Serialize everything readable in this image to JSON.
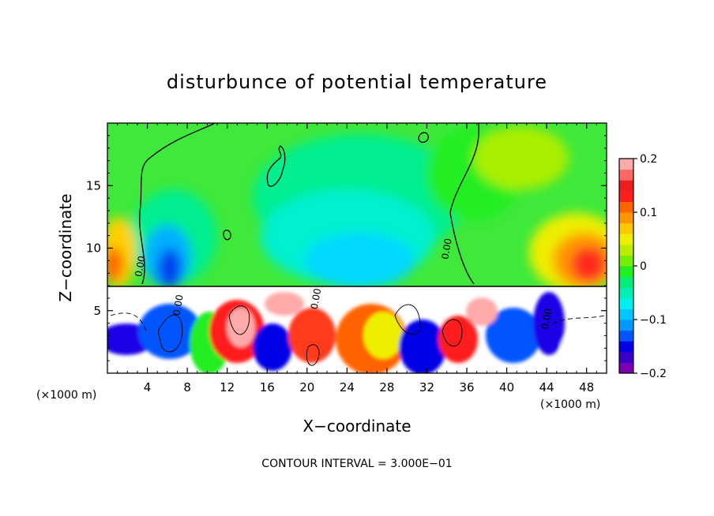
{
  "chart_data": {
    "type": "heatmap",
    "title": "disturbunce of potential temperature",
    "xlabel": "X−coordinate",
    "ylabel": "Z−coordinate",
    "x_unit": "(×1000 m)",
    "x_unit_right": "(×1000 m)",
    "xlim": [
      0,
      50
    ],
    "ylim": [
      0,
      20
    ],
    "x_ticks": [
      4,
      8,
      12,
      16,
      20,
      24,
      28,
      32,
      36,
      40,
      44,
      48
    ],
    "y_ticks": [
      5,
      10,
      15
    ],
    "contour_interval_text": "CONTOUR INTERVAL = 3.000E−01",
    "contour_labels": [
      {
        "x": 3.6,
        "z": 8.5,
        "text": "0.00"
      },
      {
        "x": 34.3,
        "z": 9.9,
        "text": "0.00"
      },
      {
        "x": 21.2,
        "z": 5.9,
        "text": "0.00"
      },
      {
        "x": 7.4,
        "z": 5.4,
        "text": "0.00"
      },
      {
        "x": 44.3,
        "z": 4.3,
        "text": "0.00"
      }
    ],
    "colorbar": {
      "ticks": [
        0.2,
        0.1,
        0,
        -0.1,
        -0.2
      ],
      "tick_labels": [
        "0.2",
        "0.1",
        "0",
        "−0.1",
        "−0.2"
      ],
      "range": [
        -0.2,
        0.2
      ],
      "colors": [
        "#7a00b0",
        "#3a00c8",
        "#0000e6",
        "#0055ff",
        "#0099ff",
        "#00c8ff",
        "#00f0f0",
        "#00f0b4",
        "#00ee78",
        "#22ee22",
        "#77ee00",
        "#bbee00",
        "#eeee00",
        "#ffc800",
        "#ff9600",
        "#ff6400",
        "#ff1e1e",
        "#ee1e1e",
        "#ff6666",
        "#ffaaaa"
      ]
    }
  }
}
